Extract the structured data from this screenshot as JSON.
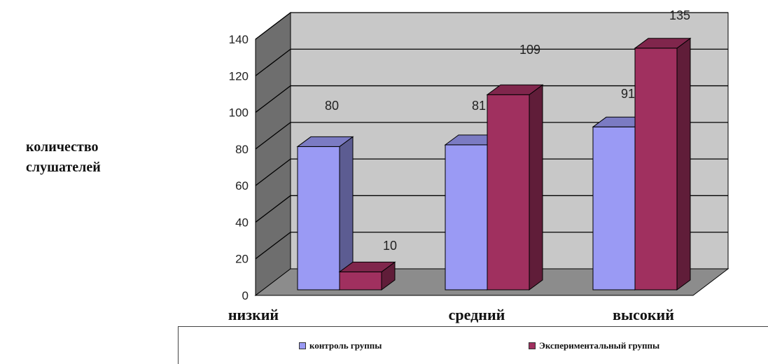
{
  "chart_data": {
    "type": "bar",
    "categories": [
      "низкий",
      "средний",
      "высокий"
    ],
    "series": [
      {
        "name": "контроль группы",
        "values": [
          80,
          81,
          91
        ],
        "color": "#9a9af4"
      },
      {
        "name": "Экспериментальный группы",
        "values": [
          10,
          109,
          135
        ],
        "color": "#a0305f"
      }
    ],
    "data_labels": [
      [
        "80",
        "81",
        "91"
      ],
      [
        "10",
        "109",
        "135"
      ]
    ],
    "ylabel": "количество слушателей",
    "ylim": [
      0,
      140
    ],
    "yticks": [
      "0",
      "20",
      "40",
      "60",
      "80",
      "100",
      "120",
      "140"
    ],
    "grid": true,
    "legend_placement": "bottom",
    "wall_color": "#c8c8c8",
    "floor_color": "#8c8c8c"
  }
}
